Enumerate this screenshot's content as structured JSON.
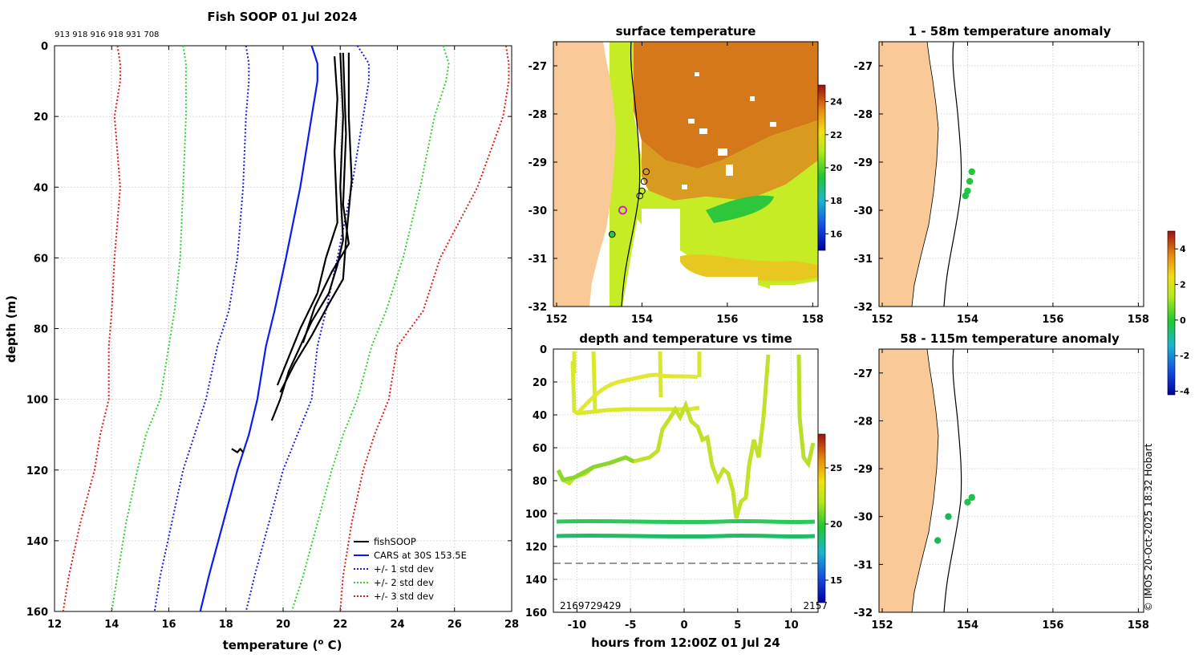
{
  "colors": {
    "land": "#f9c997",
    "obs": "#000000",
    "cars": "#0b1cf0",
    "std1": "#1a1ae6",
    "std2": "#2fd12f",
    "std3": "#e01818",
    "sst_warm": "#cf6a10",
    "sst_cool": "#c6ec25",
    "grid": "#c8c8c8"
  },
  "profile": {
    "title": "Fish SOOP 01 Jul 2024",
    "drop_ids": "913 918 916 918 931 708",
    "xlabel_pre": "temperature (",
    "xlabel_sup": "o",
    "xlabel_post": " C)",
    "ylabel": "depth (m)",
    "xticks": [
      "12",
      "14",
      "16",
      "18",
      "20",
      "22",
      "24",
      "26",
      "28"
    ],
    "yticks": [
      "0",
      "20",
      "40",
      "60",
      "80",
      "100",
      "120",
      "140",
      "160"
    ],
    "legend": [
      "fishSOOP",
      "CARS at 30S 153.5E",
      "+/- 1 std dev",
      "+/- 2 std dev",
      "+/- 3 std dev"
    ]
  },
  "sst_map": {
    "title": "surface temperature",
    "xticks": [
      "152",
      "154",
      "156",
      "158"
    ],
    "yticks": [
      "-27",
      "-28",
      "-29",
      "-30",
      "-31",
      "-32"
    ],
    "cbar_ticks": [
      "24",
      "22",
      "20",
      "18",
      "16"
    ]
  },
  "timeseries": {
    "title": "depth and temperature vs time",
    "xlabel": "hours from 12:00Z 01 Jul 24",
    "xticks": [
      "-10",
      "-5",
      "0",
      "5",
      "10"
    ],
    "yticks": [
      "0",
      "20",
      "40",
      "60",
      "80",
      "100",
      "120",
      "140",
      "160"
    ],
    "note_left": "2169729429",
    "note_right": "2157",
    "cbar_ticks": [
      "25",
      "20",
      "15"
    ]
  },
  "anom_shallow": {
    "title": "1 - 58m temperature anomaly",
    "xticks": [
      "152",
      "154",
      "156",
      "158"
    ],
    "yticks": [
      "-27",
      "-28",
      "-29",
      "-30",
      "-31",
      "-32"
    ]
  },
  "anom_deep": {
    "title": "58 - 115m temperature anomaly",
    "xticks": [
      "152",
      "154",
      "156",
      "158"
    ],
    "yticks": [
      "-27",
      "-28",
      "-29",
      "-30",
      "-31",
      "-32"
    ]
  },
  "anom_cbar": {
    "ticks": [
      "4",
      "2",
      "0",
      "-2",
      "-4"
    ]
  },
  "footer": {
    "credit": "© IMOS 20-Oct-2025 18:32 Hobart"
  },
  "chart_data": [
    {
      "type": "line",
      "title": "Fish SOOP 01 Jul 2024",
      "xlabel": "temperature (o C)",
      "ylabel": "depth (m)",
      "xlim": [
        12,
        28
      ],
      "ylim": [
        160,
        0
      ],
      "series": [
        {
          "name": "CARS at 30S 153.5E",
          "x": [
            21.0,
            21.2,
            21.2,
            21.0,
            20.6,
            20.1,
            19.7,
            19.4,
            19.1,
            18.8,
            18.4,
            17.9,
            17.4,
            17.1
          ],
          "y": [
            0,
            5,
            10,
            20,
            40,
            60,
            75,
            85,
            100,
            110,
            120,
            135,
            150,
            160
          ]
        },
        {
          "name": "+1 std dev",
          "x": [
            22.6,
            23.0,
            23.0,
            22.8,
            22.4,
            21.9,
            21.5,
            21.2,
            21.0,
            20.5,
            20.0,
            19.5,
            19.0,
            18.7
          ],
          "y": [
            0,
            5,
            10,
            20,
            40,
            60,
            75,
            85,
            100,
            110,
            120,
            135,
            150,
            160
          ]
        },
        {
          "name": "-1 std dev",
          "x": [
            18.7,
            18.8,
            18.8,
            18.7,
            18.6,
            18.4,
            18.1,
            17.7,
            17.3,
            16.9,
            16.5,
            16.1,
            15.7,
            15.5
          ],
          "y": [
            0,
            5,
            10,
            20,
            40,
            60,
            75,
            85,
            100,
            110,
            120,
            135,
            150,
            160
          ]
        },
        {
          "name": "+2 std dev",
          "x": [
            25.6,
            25.8,
            25.7,
            25.3,
            24.8,
            24.2,
            23.6,
            23.1,
            22.6,
            22.1,
            21.7,
            21.2,
            20.7,
            20.3
          ],
          "y": [
            0,
            5,
            10,
            20,
            40,
            60,
            75,
            85,
            100,
            110,
            120,
            135,
            150,
            160
          ]
        },
        {
          "name": "-2 std dev",
          "x": [
            16.5,
            16.6,
            16.6,
            16.6,
            16.5,
            16.4,
            16.2,
            16.0,
            15.7,
            15.2,
            14.9,
            14.5,
            14.2,
            14.0
          ],
          "y": [
            0,
            5,
            10,
            20,
            40,
            60,
            75,
            85,
            100,
            110,
            120,
            135,
            150,
            160
          ]
        },
        {
          "name": "+3 std dev",
          "x": [
            27.8,
            27.9,
            27.9,
            27.7,
            26.8,
            25.5,
            24.9,
            24.0,
            23.7,
            23.2,
            22.8,
            22.4,
            22.1,
            22.0
          ],
          "y": [
            0,
            5,
            10,
            20,
            40,
            60,
            75,
            85,
            100,
            110,
            120,
            135,
            150,
            160
          ]
        },
        {
          "name": "-3 std dev",
          "x": [
            14.2,
            14.3,
            14.3,
            14.1,
            14.3,
            14.1,
            14.0,
            13.9,
            13.9,
            13.6,
            13.4,
            12.9,
            12.5,
            12.3
          ],
          "y": [
            0,
            5,
            10,
            20,
            40,
            60,
            75,
            85,
            100,
            110,
            120,
            135,
            150,
            160
          ]
        },
        {
          "name": "fishSOOP",
          "x": [
            22.0,
            22.1,
            22.0,
            22.1,
            21.9,
            21.6,
            21.0,
            20.6,
            20.2,
            19.9,
            19.6
          ],
          "y": [
            2,
            20,
            40,
            55,
            62,
            70,
            78,
            85,
            92,
            100,
            106
          ]
        },
        {
          "name": "fishSOOP",
          "x": [
            22.3,
            22.3,
            22.4,
            22.2,
            22.1,
            21.6,
            21.0,
            20.4,
            19.9
          ],
          "y": [
            2,
            20,
            38,
            55,
            66,
            73,
            82,
            90,
            98
          ]
        },
        {
          "name": "fishSOOP",
          "x": [
            21.8,
            21.9,
            21.8,
            21.9,
            21.5,
            21.2,
            20.6,
            20.2,
            19.8
          ],
          "y": [
            3,
            15,
            30,
            50,
            60,
            70,
            80,
            88,
            96
          ]
        },
        {
          "name": "fishSOOP",
          "x": [
            22.1,
            22.2,
            22.1,
            22.3,
            21.7,
            21.1,
            20.7
          ],
          "y": [
            2,
            25,
            45,
            56,
            64,
            74,
            84
          ]
        },
        {
          "name": "fishSOOP",
          "x": [
            18.2,
            18.4,
            18.5,
            18.6
          ],
          "y": [
            114,
            115,
            114,
            115
          ]
        }
      ]
    },
    {
      "type": "heatmap",
      "title": "surface temperature",
      "xlim": [
        152,
        158
      ],
      "ylim": [
        -32,
        -26.5
      ],
      "colorbar": {
        "min": 15,
        "max": 25,
        "ticks": [
          16,
          18,
          20,
          22,
          24
        ]
      },
      "points": [
        {
          "lon": 154.1,
          "lat": -29.2
        },
        {
          "lon": 154.05,
          "lat": -29.4
        },
        {
          "lon": 154.0,
          "lat": -29.6
        },
        {
          "lon": 153.95,
          "lat": -29.7
        },
        {
          "lon": 153.55,
          "lat": -30.0
        },
        {
          "lon": 153.3,
          "lat": -30.5
        }
      ]
    },
    {
      "type": "scatter",
      "title": "depth and temperature vs time",
      "xlabel": "hours from 12:00Z 01 Jul 24",
      "xlim": [
        -12.2,
        12.5
      ],
      "ylim": [
        160,
        0
      ],
      "reference_depth": 130,
      "colorbar": {
        "min": 13,
        "max": 28,
        "ticks": [
          15,
          20,
          25
        ]
      }
    },
    {
      "type": "scatter",
      "title": "1 - 58m temperature anomaly",
      "xlim": [
        152,
        158
      ],
      "ylim": [
        -32,
        -26.5
      ],
      "points": [
        {
          "lon": 154.1,
          "lat": -29.2,
          "anom": 0.3
        },
        {
          "lon": 154.05,
          "lat": -29.4,
          "anom": 0.4
        },
        {
          "lon": 154.0,
          "lat": -29.6,
          "anom": 0.4
        },
        {
          "lon": 153.95,
          "lat": -29.7,
          "anom": 0.5
        }
      ]
    },
    {
      "type": "scatter",
      "title": "58 - 115m temperature anomaly",
      "xlim": [
        152,
        158
      ],
      "ylim": [
        -32,
        -26.5
      ],
      "points": [
        {
          "lon": 154.1,
          "lat": -29.6,
          "anom": 0.5
        },
        {
          "lon": 154.0,
          "lat": -29.7,
          "anom": 0.5
        },
        {
          "lon": 153.55,
          "lat": -30.0,
          "anom": 0.6
        },
        {
          "lon": 153.3,
          "lat": -30.5,
          "anom": 0.6
        }
      ]
    },
    {
      "type": "heatmap",
      "title": "temperature anomaly colorbar",
      "colorbar": {
        "min": -4.2,
        "max": 5.0,
        "ticks": [
          -4,
          -2,
          0,
          2,
          4
        ]
      }
    }
  ]
}
